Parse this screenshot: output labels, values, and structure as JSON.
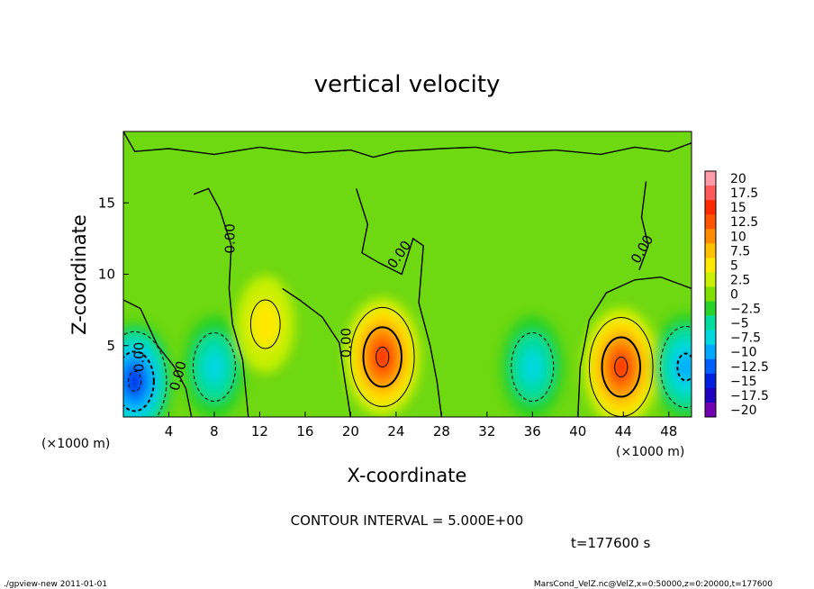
{
  "chart_data": {
    "type": "heatmap",
    "title": "vertical velocity",
    "xlabel": "X-coordinate",
    "ylabel": "Z-coordinate",
    "x_unit": "(×1000 m)",
    "y_unit": "(×1000 m)",
    "xlim": [
      0,
      50
    ],
    "ylim": [
      0,
      20
    ],
    "x_ticks": [
      "4",
      "8",
      "12",
      "16",
      "20",
      "24",
      "28",
      "32",
      "36",
      "40",
      "44",
      "48"
    ],
    "y_ticks": [
      "5",
      "10",
      "15"
    ],
    "contour_labels": [
      "0.00",
      "0.00",
      "0.00",
      "0.00",
      "0.00",
      "0.00"
    ],
    "colorbar": {
      "ticks": [
        "20",
        "17.5",
        "15",
        "12.5",
        "10",
        "7.5",
        "5",
        "2.5",
        "0",
        "−2.5",
        "−5",
        "−7.5",
        "−10",
        "−12.5",
        "−15",
        "−17.5",
        "−20"
      ],
      "colors": [
        "#ff9aa8",
        "#ff5a5a",
        "#ff2a00",
        "#ff5500",
        "#ff8c00",
        "#ffc000",
        "#ffe800",
        "#c8f000",
        "#80e000",
        "#28d228",
        "#00dca0",
        "#00d8e0",
        "#00a8ff",
        "#0060ff",
        "#0020e0",
        "#2000c0",
        "#7000b0"
      ]
    },
    "features": [
      {
        "x": 1.0,
        "z": 2.5,
        "w": -16
      },
      {
        "x": 8.0,
        "z": 3.5,
        "w": -7
      },
      {
        "x": 12.5,
        "z": 6.5,
        "w": 4
      },
      {
        "x": 22.8,
        "z": 4.2,
        "w": 15
      },
      {
        "x": 36.0,
        "z": 3.5,
        "w": -8
      },
      {
        "x": 43.8,
        "z": 3.5,
        "w": 16
      },
      {
        "x": 49.5,
        "z": 3.5,
        "w": -10
      }
    ],
    "contour_interval": "CONTOUR INTERVAL = 5.000E+00",
    "time": "t=177600 s"
  },
  "footer": {
    "left": "./gpview-new  2011-01-01",
    "right": "MarsCond_VelZ.nc@VelZ,x=0:50000,z=0:20000,t=177600"
  }
}
